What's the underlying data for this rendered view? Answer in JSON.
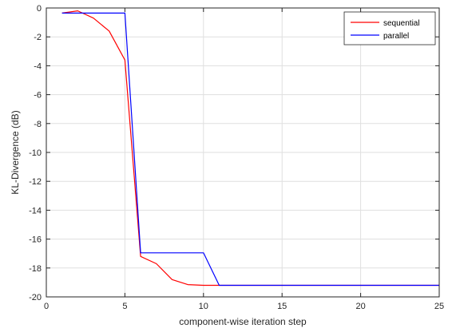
{
  "chart_data": {
    "type": "line",
    "xlabel": "component-wise iteration step",
    "ylabel": "KL-Divergence (dB)",
    "xlim": [
      0,
      25
    ],
    "ylim": [
      -20,
      0
    ],
    "xticks": [
      0,
      5,
      10,
      15,
      20,
      25
    ],
    "yticks": [
      0,
      -2,
      -4,
      -6,
      -8,
      -10,
      -12,
      -14,
      -16,
      -18,
      -20
    ],
    "grid": true,
    "legend_position": "top-right",
    "series": [
      {
        "name": "sequential",
        "color": "#ff0000",
        "x": [
          1,
          2,
          3,
          4,
          5,
          6,
          7,
          8,
          9,
          10,
          11,
          12,
          13,
          14,
          15,
          16,
          17,
          18,
          19,
          20,
          21,
          22,
          23,
          24,
          25
        ],
        "y": [
          -0.35,
          -0.2,
          -0.7,
          -1.6,
          -3.6,
          -17.2,
          -17.7,
          -18.8,
          -19.15,
          -19.2,
          -19.2,
          -19.2,
          -19.2,
          -19.2,
          -19.2,
          -19.2,
          -19.2,
          -19.2,
          -19.2,
          -19.2,
          -19.2,
          -19.2,
          -19.2,
          -19.2,
          -19.2
        ]
      },
      {
        "name": "parallel",
        "color": "#0000ff",
        "x": [
          1,
          2,
          3,
          4,
          5,
          6,
          7,
          8,
          9,
          10,
          11,
          12,
          13,
          14,
          15,
          16,
          17,
          18,
          19,
          20,
          21,
          22,
          23,
          24,
          25
        ],
        "y": [
          -0.35,
          -0.35,
          -0.35,
          -0.35,
          -0.35,
          -16.95,
          -16.95,
          -16.95,
          -16.95,
          -16.95,
          -19.2,
          -19.2,
          -19.2,
          -19.2,
          -19.2,
          -19.2,
          -19.2,
          -19.2,
          -19.2,
          -19.2,
          -19.2,
          -19.2,
          -19.2,
          -19.2,
          -19.2
        ]
      }
    ]
  }
}
